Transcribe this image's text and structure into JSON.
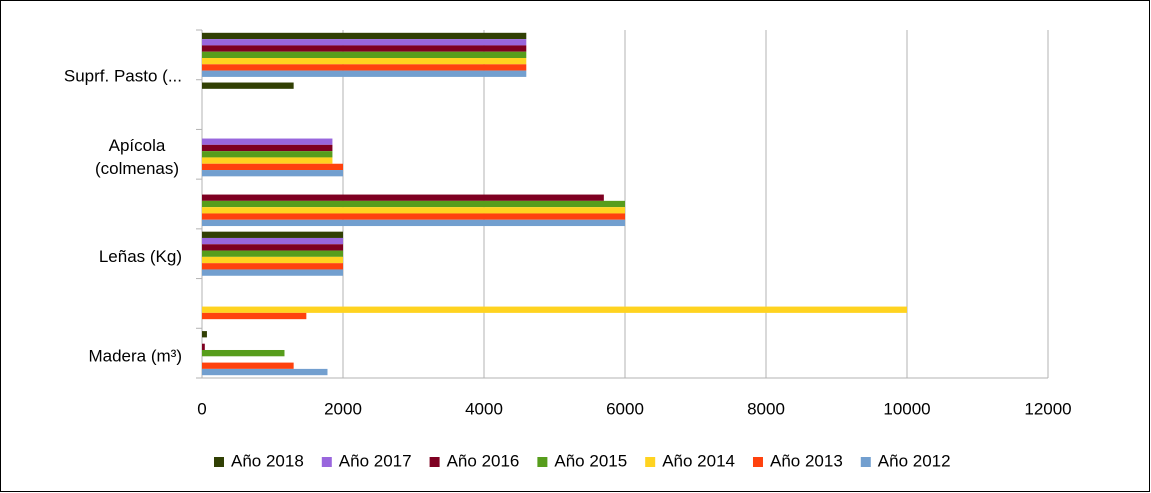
{
  "chart_data": {
    "type": "hbar",
    "categories": [
      "Suprf. Pasto  (...",
      null,
      "Apícola (colmenas)",
      null,
      "Leñas (Kg)",
      null,
      "Madera (m³)"
    ],
    "series": [
      {
        "name": "Año 2018",
        "color": "#314004",
        "values": [
          4600,
          1300,
          0,
          0,
          2000,
          0,
          70
        ]
      },
      {
        "name": "Año 2017",
        "color": "#9966dd",
        "values": [
          4600,
          0,
          1850,
          0,
          2000,
          0,
          0
        ]
      },
      {
        "name": "Año 2016",
        "color": "#7e0021",
        "values": [
          4600,
          0,
          1850,
          5700,
          2000,
          0,
          40
        ]
      },
      {
        "name": "Año 2015",
        "color": "#579d1c",
        "values": [
          4600,
          0,
          1850,
          6000,
          2000,
          0,
          1170
        ]
      },
      {
        "name": "Año 2014",
        "color": "#ffd320",
        "values": [
          4600,
          0,
          1850,
          6000,
          2000,
          10000,
          0
        ]
      },
      {
        "name": "Año 2013",
        "color": "#ff420e",
        "values": [
          4600,
          0,
          2000,
          6000,
          2000,
          1480,
          1300
        ]
      },
      {
        "name": "Año 2012",
        "color": "#729fcf",
        "values": [
          4600,
          0,
          2000,
          6000,
          2000,
          0,
          1780
        ]
      }
    ],
    "xlim": [
      0,
      12000
    ],
    "xticks": [
      0,
      2000,
      4000,
      6000,
      8000,
      10000,
      12000
    ],
    "grid": true,
    "legend": "bottom"
  }
}
